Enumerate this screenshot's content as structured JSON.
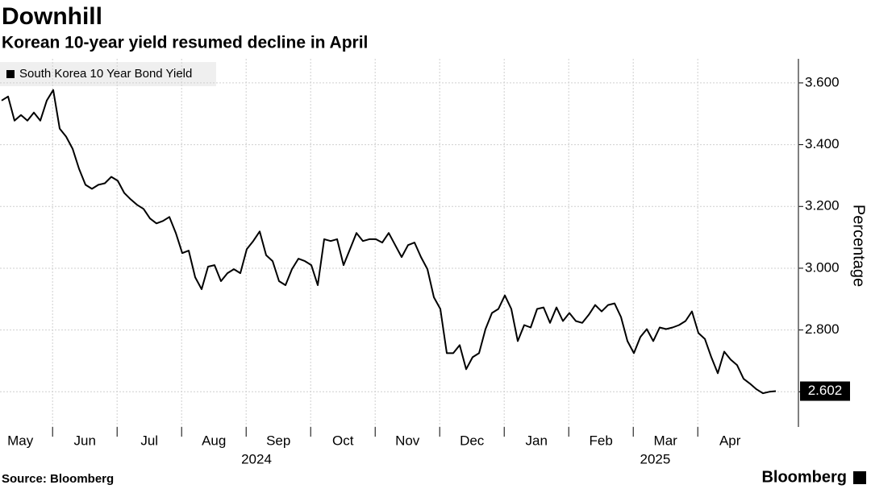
{
  "chart_data": {
    "type": "line",
    "title": "Downhill",
    "subtitle": "Korean 10-year yield resumed decline in April",
    "source": "Source: Bloomberg",
    "brand": "Bloomberg",
    "y_axis_label": "Percentage",
    "series": [
      {
        "name": "South Korea 10 Year Bond Yield",
        "color": "#000000",
        "values": [
          3.543,
          3.556,
          3.478,
          3.496,
          3.478,
          3.504,
          3.478,
          3.543,
          3.577,
          3.452,
          3.426,
          3.387,
          3.322,
          3.27,
          3.257,
          3.27,
          3.275,
          3.296,
          3.283,
          3.244,
          3.223,
          3.205,
          3.192,
          3.161,
          3.145,
          3.153,
          3.166,
          3.114,
          3.049,
          3.057,
          2.971,
          2.932,
          3.005,
          3.01,
          2.958,
          2.984,
          2.997,
          2.984,
          3.062,
          3.088,
          3.119,
          3.042,
          3.023,
          2.958,
          2.945,
          2.997,
          3.031,
          3.023,
          3.01,
          2.945,
          3.094,
          3.088,
          3.094,
          3.01,
          3.062,
          3.114,
          3.088,
          3.094,
          3.094,
          3.083,
          3.114,
          3.075,
          3.036,
          3.075,
          3.083,
          3.036,
          2.997,
          2.906,
          2.868,
          2.725,
          2.725,
          2.751,
          2.673,
          2.712,
          2.725,
          2.803,
          2.855,
          2.868,
          2.912,
          2.868,
          2.764,
          2.816,
          2.808,
          2.868,
          2.873,
          2.823,
          2.873,
          2.829,
          2.855,
          2.829,
          2.823,
          2.849,
          2.881,
          2.86,
          2.881,
          2.886,
          2.842,
          2.764,
          2.725,
          2.777,
          2.803,
          2.764,
          2.808,
          2.803,
          2.808,
          2.816,
          2.829,
          2.86,
          2.79,
          2.771,
          2.712,
          2.66,
          2.73,
          2.704,
          2.686,
          2.642,
          2.626,
          2.608,
          2.595,
          2.6,
          2.602
        ]
      }
    ],
    "x": [
      0,
      1,
      2,
      3,
      4,
      5,
      6,
      7,
      8,
      9,
      10,
      11,
      12,
      13,
      14,
      15,
      16,
      17,
      18,
      19,
      20,
      21,
      22,
      23,
      24,
      25,
      26,
      27,
      28,
      29,
      30,
      31,
      32,
      33,
      34,
      35,
      36,
      37,
      38,
      39,
      40,
      41,
      42,
      43,
      44,
      45,
      46,
      47,
      48,
      49,
      50,
      51,
      52,
      53,
      54,
      55,
      56,
      57,
      58,
      59,
      60,
      61,
      62,
      63,
      64,
      65,
      66,
      67,
      68,
      69,
      70,
      71,
      72,
      73,
      74,
      75,
      76,
      77,
      78,
      79,
      80,
      81,
      82,
      83,
      84,
      85,
      86,
      87,
      88,
      89,
      90,
      91,
      92,
      93,
      94,
      95,
      96,
      97,
      98,
      99,
      100,
      101,
      102,
      103,
      104,
      105,
      106,
      107,
      108,
      109,
      110,
      111,
      112,
      113,
      114,
      115,
      116,
      117,
      118,
      119,
      120
    ],
    "xlim": [
      -0.25,
      123.5
    ],
    "xticks": [
      {
        "value": -2.1,
        "label": "May"
      },
      {
        "value": 7.9,
        "label": "Jun"
      },
      {
        "value": 17.9,
        "label": "Jul"
      },
      {
        "value": 27.9,
        "label": "Aug"
      },
      {
        "value": 37.9,
        "label": "Sep"
      },
      {
        "value": 47.9,
        "label": "Oct"
      },
      {
        "value": 57.9,
        "label": "Nov"
      },
      {
        "value": 67.9,
        "label": "Dec"
      },
      {
        "value": 77.9,
        "label": "Jan"
      },
      {
        "value": 87.9,
        "label": "Feb"
      },
      {
        "value": 97.9,
        "label": "Mar"
      },
      {
        "value": 107.9,
        "label": "Apr"
      }
    ],
    "year_labels": [
      {
        "x": 39.5,
        "label": "2024"
      },
      {
        "x": 101.3,
        "label": "2025"
      }
    ],
    "ylim": [
      2.486,
      3.678
    ],
    "yticks": [
      {
        "value": 2.6,
        "label": "2.600"
      },
      {
        "value": 2.8,
        "label": "2.800"
      },
      {
        "value": 3.0,
        "label": "3.000"
      },
      {
        "value": 3.2,
        "label": "3.200"
      },
      {
        "value": 3.4,
        "label": "3.400"
      },
      {
        "value": 3.6,
        "label": "3.600"
      }
    ],
    "grid": true
  }
}
